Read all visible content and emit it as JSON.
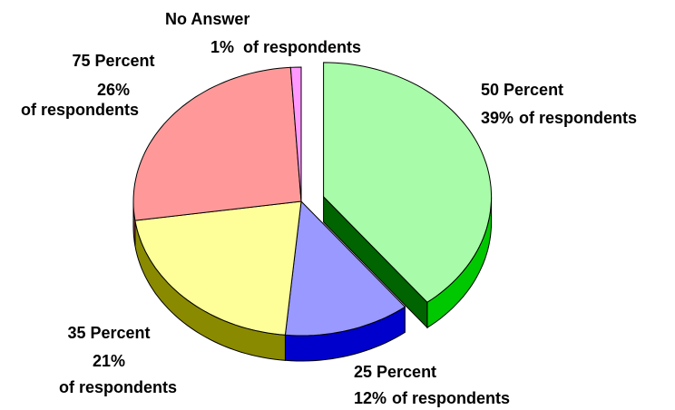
{
  "chart_data": {
    "type": "pie3d",
    "categories": [
      "50 Percent",
      "25 Percent",
      "35 Percent",
      "75 Percent",
      "No Answer"
    ],
    "values": [
      39,
      12,
      21,
      26,
      1
    ],
    "value_labels": [
      "39%",
      "12%",
      "21%",
      "26%",
      "1%"
    ],
    "descriptions": [
      "of respondents",
      "of respondents",
      "of respondents",
      "of respondents",
      "of respondents"
    ],
    "colors": [
      "#a8fba8",
      "#9999ff",
      "#ffff99",
      "#ff9999",
      "#ff99ff"
    ],
    "side_colors": [
      "#00c800",
      "#0000cc",
      "#8a8a00",
      "#b05050",
      "#b050b0"
    ],
    "exploded": [
      true,
      false,
      false,
      false,
      false
    ]
  }
}
